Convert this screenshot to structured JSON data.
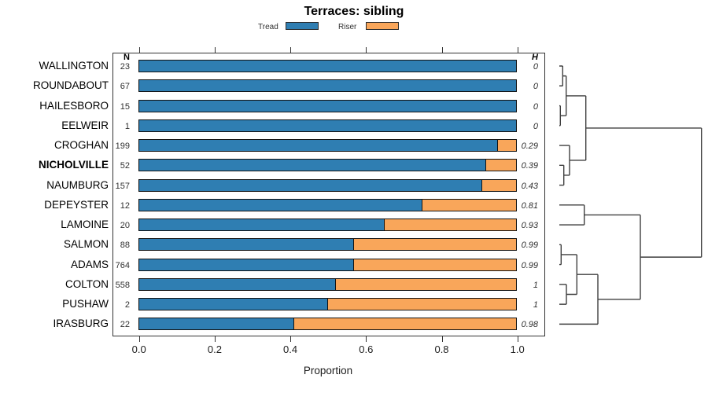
{
  "title": "Terraces: sibling",
  "xlabel": "Proportion",
  "legend": {
    "items": [
      {
        "label": "Tread",
        "color": "#2F7EB2"
      },
      {
        "label": "Riser",
        "color": "#F9A65A"
      }
    ]
  },
  "columns": {
    "n_header": "N",
    "h_header": "H"
  },
  "colors": {
    "tread": "#2F7EB2",
    "riser": "#F9A65A",
    "bar_border": "#121212",
    "line": "#3f3f3f"
  },
  "chart_data": {
    "type": "bar",
    "orientation": "horizontal",
    "stacked": true,
    "title": "Terraces: sibling",
    "xlabel": "Proportion",
    "xlim": [
      0,
      1
    ],
    "x_tick_labels": [
      "0.0",
      "0.2",
      "0.4",
      "0.6",
      "0.8",
      "1.0"
    ],
    "series_names": [
      "Tread",
      "Riser"
    ],
    "rows": [
      {
        "label": "WALLINGTON",
        "n": "23",
        "tread": 1.0,
        "riser": 0.0,
        "h": "0",
        "bold": false
      },
      {
        "label": "ROUNDABOUT",
        "n": "67",
        "tread": 1.0,
        "riser": 0.0,
        "h": "0",
        "bold": false
      },
      {
        "label": "HAILESBORO",
        "n": "15",
        "tread": 1.0,
        "riser": 0.0,
        "h": "0",
        "bold": false
      },
      {
        "label": "EELWEIR",
        "n": "1",
        "tread": 1.0,
        "riser": 0.0,
        "h": "0",
        "bold": false
      },
      {
        "label": "CROGHAN",
        "n": "199",
        "tread": 0.95,
        "riser": 0.05,
        "h": "0.29",
        "bold": false
      },
      {
        "label": "NICHOLVILLE",
        "n": "52",
        "tread": 0.92,
        "riser": 0.08,
        "h": "0.39",
        "bold": true
      },
      {
        "label": "NAUMBURG",
        "n": "157",
        "tread": 0.91,
        "riser": 0.09,
        "h": "0.43",
        "bold": false
      },
      {
        "label": "DEPEYSTER",
        "n": "12",
        "tread": 0.75,
        "riser": 0.25,
        "h": "0.81",
        "bold": false
      },
      {
        "label": "LAMOINE",
        "n": "20",
        "tread": 0.65,
        "riser": 0.35,
        "h": "0.93",
        "bold": false
      },
      {
        "label": "SALMON",
        "n": "88",
        "tread": 0.57,
        "riser": 0.43,
        "h": "0.99",
        "bold": false
      },
      {
        "label": "ADAMS",
        "n": "764",
        "tread": 0.57,
        "riser": 0.43,
        "h": "0.99",
        "bold": false
      },
      {
        "label": "COLTON",
        "n": "558",
        "tread": 0.52,
        "riser": 0.48,
        "h": "1",
        "bold": false
      },
      {
        "label": "PUSHAW",
        "n": "2",
        "tread": 0.5,
        "riser": 0.5,
        "h": "1",
        "bold": false
      },
      {
        "label": "IRASBURG",
        "n": "22",
        "tread": 0.41,
        "riser": 0.59,
        "h": "0.98",
        "bold": false
      }
    ],
    "dendrogram": {
      "leaf_x": 711,
      "merges": [
        {
          "id": "m1",
          "children": [
            "WALLINGTON",
            "ROUNDABOUT"
          ],
          "x": 715.3
        },
        {
          "id": "m2",
          "children": [
            "HAILESBORO",
            "EELWEIR"
          ],
          "x": 712.3
        },
        {
          "id": "m3",
          "children": [
            "m1",
            "m2"
          ],
          "x": 719.7
        },
        {
          "id": "m4",
          "children": [
            "NICHOLVILLE",
            "NAUMBURG"
          ],
          "x": 716.7
        },
        {
          "id": "m5",
          "children": [
            "CROGHAN",
            "m4"
          ],
          "x": 724.0
        },
        {
          "id": "m6",
          "children": [
            "m3",
            "m5"
          ],
          "x": 744.7
        },
        {
          "id": "m7",
          "children": [
            "DEPEYSTER",
            "LAMOINE"
          ],
          "x": 742.7
        },
        {
          "id": "m8",
          "children": [
            "SALMON",
            "ADAMS"
          ],
          "x": 713.3
        },
        {
          "id": "m9",
          "children": [
            "COLTON",
            "PUSHAW"
          ],
          "x": 720.0
        },
        {
          "id": "m10",
          "children": [
            "m8",
            "m9"
          ],
          "x": 733.3
        },
        {
          "id": "m11",
          "children": [
            "m10",
            "IRASBURG"
          ],
          "x": 760.0
        },
        {
          "id": "m12",
          "children": [
            "m7",
            "m11"
          ],
          "x": 814.0
        },
        {
          "id": "m13",
          "children": [
            "m6",
            "m12"
          ],
          "x": 891.7
        }
      ]
    }
  }
}
